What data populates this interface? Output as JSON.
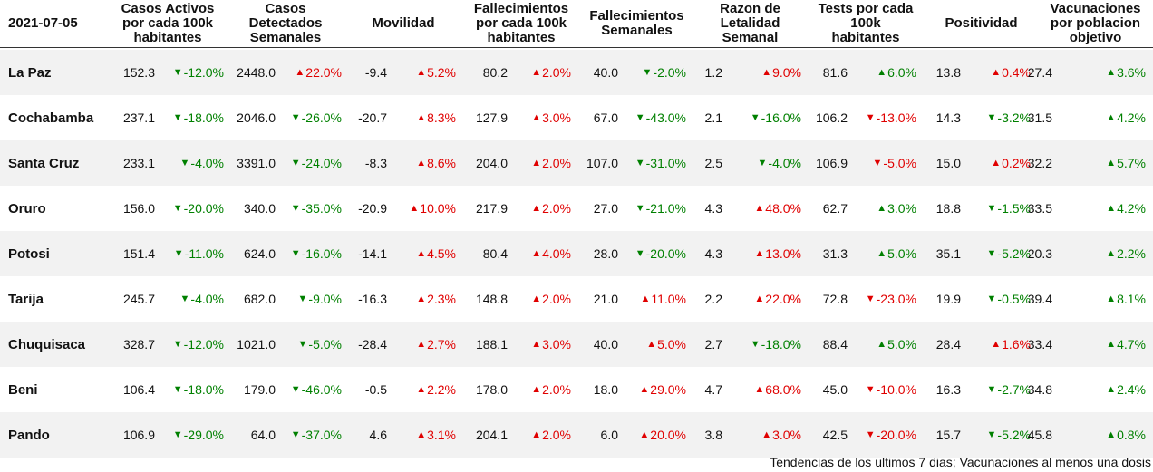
{
  "table": {
    "date": "2021-07-05",
    "headers": [
      "Casos Activos\npor cada 100k\nhabitantes",
      "Casos\nDetectados\nSemanales",
      "Movilidad",
      "Fallecimientos\npor cada 100k\nhabitantes",
      "Fallecimientos\nSemanales",
      "Razon de\nLetalidad\nSemanal",
      "Tests por cada\n100k\nhabitantes",
      "Positividad",
      "Vacunaciones\npor poblacion\nobjetivo"
    ],
    "rows": [
      {
        "name": "La Paz",
        "cells": [
          {
            "v": "152.3",
            "c": "-12.0%",
            "dir": "down",
            "color": "green"
          },
          {
            "v": "2448.0",
            "c": "22.0%",
            "dir": "up",
            "color": "red"
          },
          {
            "v": "-9.4",
            "c": "5.2%",
            "dir": "up",
            "color": "red"
          },
          {
            "v": "80.2",
            "c": "2.0%",
            "dir": "up",
            "color": "red"
          },
          {
            "v": "40.0",
            "c": "-2.0%",
            "dir": "down",
            "color": "green"
          },
          {
            "v": "1.2",
            "c": "9.0%",
            "dir": "up",
            "color": "red"
          },
          {
            "v": "81.6",
            "c": "6.0%",
            "dir": "up",
            "color": "green"
          },
          {
            "v": "13.8",
            "c": "0.4%",
            "dir": "up",
            "color": "red"
          },
          {
            "v": "27.4",
            "c": "3.6%",
            "dir": "up",
            "color": "green"
          }
        ]
      },
      {
        "name": "Cochabamba",
        "cells": [
          {
            "v": "237.1",
            "c": "-18.0%",
            "dir": "down",
            "color": "green"
          },
          {
            "v": "2046.0",
            "c": "-26.0%",
            "dir": "down",
            "color": "green"
          },
          {
            "v": "-20.7",
            "c": "8.3%",
            "dir": "up",
            "color": "red"
          },
          {
            "v": "127.9",
            "c": "3.0%",
            "dir": "up",
            "color": "red"
          },
          {
            "v": "67.0",
            "c": "-43.0%",
            "dir": "down",
            "color": "green"
          },
          {
            "v": "2.1",
            "c": "-16.0%",
            "dir": "down",
            "color": "green"
          },
          {
            "v": "106.2",
            "c": "-13.0%",
            "dir": "down",
            "color": "red"
          },
          {
            "v": "14.3",
            "c": "-3.2%",
            "dir": "down",
            "color": "green"
          },
          {
            "v": "31.5",
            "c": "4.2%",
            "dir": "up",
            "color": "green"
          }
        ]
      },
      {
        "name": "Santa Cruz",
        "cells": [
          {
            "v": "233.1",
            "c": "-4.0%",
            "dir": "down",
            "color": "green"
          },
          {
            "v": "3391.0",
            "c": "-24.0%",
            "dir": "down",
            "color": "green"
          },
          {
            "v": "-8.3",
            "c": "8.6%",
            "dir": "up",
            "color": "red"
          },
          {
            "v": "204.0",
            "c": "2.0%",
            "dir": "up",
            "color": "red"
          },
          {
            "v": "107.0",
            "c": "-31.0%",
            "dir": "down",
            "color": "green"
          },
          {
            "v": "2.5",
            "c": "-4.0%",
            "dir": "down",
            "color": "green"
          },
          {
            "v": "106.9",
            "c": "-5.0%",
            "dir": "down",
            "color": "red"
          },
          {
            "v": "15.0",
            "c": "0.2%",
            "dir": "up",
            "color": "red"
          },
          {
            "v": "32.2",
            "c": "5.7%",
            "dir": "up",
            "color": "green"
          }
        ]
      },
      {
        "name": "Oruro",
        "cells": [
          {
            "v": "156.0",
            "c": "-20.0%",
            "dir": "down",
            "color": "green"
          },
          {
            "v": "340.0",
            "c": "-35.0%",
            "dir": "down",
            "color": "green"
          },
          {
            "v": "-20.9",
            "c": "10.0%",
            "dir": "up",
            "color": "red"
          },
          {
            "v": "217.9",
            "c": "2.0%",
            "dir": "up",
            "color": "red"
          },
          {
            "v": "27.0",
            "c": "-21.0%",
            "dir": "down",
            "color": "green"
          },
          {
            "v": "4.3",
            "c": "48.0%",
            "dir": "up",
            "color": "red"
          },
          {
            "v": "62.7",
            "c": "3.0%",
            "dir": "up",
            "color": "green"
          },
          {
            "v": "18.8",
            "c": "-1.5%",
            "dir": "down",
            "color": "green"
          },
          {
            "v": "33.5",
            "c": "4.2%",
            "dir": "up",
            "color": "green"
          }
        ]
      },
      {
        "name": "Potosi",
        "cells": [
          {
            "v": "151.4",
            "c": "-11.0%",
            "dir": "down",
            "color": "green"
          },
          {
            "v": "624.0",
            "c": "-16.0%",
            "dir": "down",
            "color": "green"
          },
          {
            "v": "-14.1",
            "c": "4.5%",
            "dir": "up",
            "color": "red"
          },
          {
            "v": "80.4",
            "c": "4.0%",
            "dir": "up",
            "color": "red"
          },
          {
            "v": "28.0",
            "c": "-20.0%",
            "dir": "down",
            "color": "green"
          },
          {
            "v": "4.3",
            "c": "13.0%",
            "dir": "up",
            "color": "red"
          },
          {
            "v": "31.3",
            "c": "5.0%",
            "dir": "up",
            "color": "green"
          },
          {
            "v": "35.1",
            "c": "-5.2%",
            "dir": "down",
            "color": "green"
          },
          {
            "v": "20.3",
            "c": "2.2%",
            "dir": "up",
            "color": "green"
          }
        ]
      },
      {
        "name": "Tarija",
        "cells": [
          {
            "v": "245.7",
            "c": "-4.0%",
            "dir": "down",
            "color": "green"
          },
          {
            "v": "682.0",
            "c": "-9.0%",
            "dir": "down",
            "color": "green"
          },
          {
            "v": "-16.3",
            "c": "2.3%",
            "dir": "up",
            "color": "red"
          },
          {
            "v": "148.8",
            "c": "2.0%",
            "dir": "up",
            "color": "red"
          },
          {
            "v": "21.0",
            "c": "11.0%",
            "dir": "up",
            "color": "red"
          },
          {
            "v": "2.2",
            "c": "22.0%",
            "dir": "up",
            "color": "red"
          },
          {
            "v": "72.8",
            "c": "-23.0%",
            "dir": "down",
            "color": "red"
          },
          {
            "v": "19.9",
            "c": "-0.5%",
            "dir": "down",
            "color": "green"
          },
          {
            "v": "39.4",
            "c": "8.1%",
            "dir": "up",
            "color": "green"
          }
        ]
      },
      {
        "name": "Chuquisaca",
        "cells": [
          {
            "v": "328.7",
            "c": "-12.0%",
            "dir": "down",
            "color": "green"
          },
          {
            "v": "1021.0",
            "c": "-5.0%",
            "dir": "down",
            "color": "green"
          },
          {
            "v": "-28.4",
            "c": "2.7%",
            "dir": "up",
            "color": "red"
          },
          {
            "v": "188.1",
            "c": "3.0%",
            "dir": "up",
            "color": "red"
          },
          {
            "v": "40.0",
            "c": "5.0%",
            "dir": "up",
            "color": "red"
          },
          {
            "v": "2.7",
            "c": "-18.0%",
            "dir": "down",
            "color": "green"
          },
          {
            "v": "88.4",
            "c": "5.0%",
            "dir": "up",
            "color": "green"
          },
          {
            "v": "28.4",
            "c": "1.6%",
            "dir": "up",
            "color": "red"
          },
          {
            "v": "33.4",
            "c": "4.7%",
            "dir": "up",
            "color": "green"
          }
        ]
      },
      {
        "name": "Beni",
        "cells": [
          {
            "v": "106.4",
            "c": "-18.0%",
            "dir": "down",
            "color": "green"
          },
          {
            "v": "179.0",
            "c": "-46.0%",
            "dir": "down",
            "color": "green"
          },
          {
            "v": "-0.5",
            "c": "2.2%",
            "dir": "up",
            "color": "red"
          },
          {
            "v": "178.0",
            "c": "2.0%",
            "dir": "up",
            "color": "red"
          },
          {
            "v": "18.0",
            "c": "29.0%",
            "dir": "up",
            "color": "red"
          },
          {
            "v": "4.7",
            "c": "68.0%",
            "dir": "up",
            "color": "red"
          },
          {
            "v": "45.0",
            "c": "-10.0%",
            "dir": "down",
            "color": "red"
          },
          {
            "v": "16.3",
            "c": "-2.7%",
            "dir": "down",
            "color": "green"
          },
          {
            "v": "34.8",
            "c": "2.4%",
            "dir": "up",
            "color": "green"
          }
        ]
      },
      {
        "name": "Pando",
        "cells": [
          {
            "v": "106.9",
            "c": "-29.0%",
            "dir": "down",
            "color": "green"
          },
          {
            "v": "64.0",
            "c": "-37.0%",
            "dir": "down",
            "color": "green"
          },
          {
            "v": "4.6",
            "c": "3.1%",
            "dir": "up",
            "color": "red"
          },
          {
            "v": "204.1",
            "c": "2.0%",
            "dir": "up",
            "color": "red"
          },
          {
            "v": "6.0",
            "c": "20.0%",
            "dir": "up",
            "color": "red"
          },
          {
            "v": "3.8",
            "c": "3.0%",
            "dir": "up",
            "color": "red"
          },
          {
            "v": "42.5",
            "c": "-20.0%",
            "dir": "down",
            "color": "red"
          },
          {
            "v": "15.7",
            "c": "-5.2%",
            "dir": "down",
            "color": "green"
          },
          {
            "v": "45.8",
            "c": "0.8%",
            "dir": "up",
            "color": "green"
          }
        ]
      }
    ],
    "footnote": "Tendencias de los ultimos 7 dias; Vacunaciones al menos una dosis"
  },
  "colors": {
    "red": "#e00000",
    "green": "#008000",
    "row_shade": "#f2f2f2"
  },
  "chart_data": {
    "type": "table",
    "title": "2021-07-05",
    "columns": [
      "Casos Activos por cada 100k habitantes",
      "Casos Detectados Semanales",
      "Movilidad",
      "Fallecimientos por cada 100k habitantes",
      "Fallecimientos Semanales",
      "Razon de Letalidad Semanal",
      "Tests por cada 100k habitantes",
      "Positividad",
      "Vacunaciones por poblacion objetivo"
    ],
    "rows": [
      "La Paz",
      "Cochabamba",
      "Santa Cruz",
      "Oruro",
      "Potosi",
      "Tarija",
      "Chuquisaca",
      "Beni",
      "Pando"
    ],
    "note": "Tendencias de los ultimos 7 dias; Vacunaciones al menos una dosis"
  }
}
